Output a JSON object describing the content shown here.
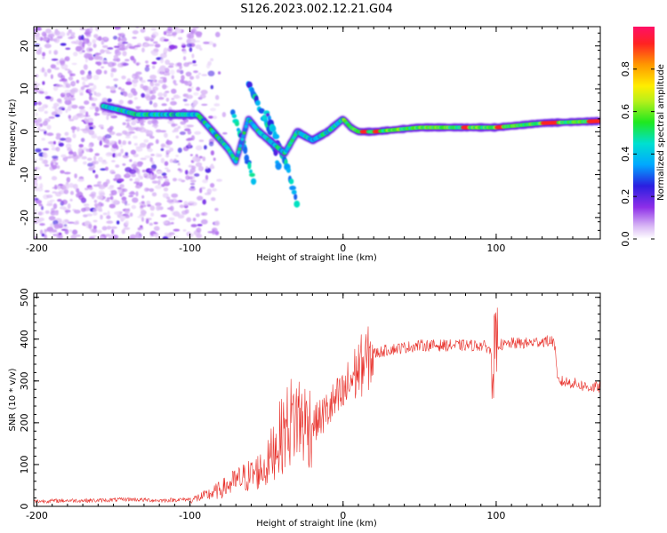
{
  "figure": {
    "title": "S126.2023.002.12.21.G04"
  },
  "chart_data": [
    {
      "type": "heatmap",
      "title": "S126.2023.002.12.21.G04",
      "xlabel": "Height of straight line (km)",
      "ylabel": "Frequency (Hz)",
      "xlim": [
        -202,
        168
      ],
      "ylim": [
        -25,
        24.5
      ],
      "xticks": [
        -200,
        -100,
        0,
        100
      ],
      "xtick_labels": [
        "-200",
        "-100",
        "0",
        "100"
      ],
      "yticks": [
        -20,
        -10,
        0,
        10,
        20
      ],
      "ytick_labels": [
        "-20",
        "-10",
        "0",
        "10",
        "20"
      ],
      "trace": {
        "description": "dominant spectral line (frequency in Hz vs height in km)",
        "x": [
          -157,
          -145,
          -135,
          -120,
          -105,
          -95,
          -85,
          -75,
          -70,
          -62,
          -55,
          -45,
          -38,
          -30,
          -20,
          -10,
          0,
          5,
          10,
          20,
          50,
          80,
          95,
          100,
          130,
          168
        ],
        "y": [
          6,
          5,
          4,
          4,
          4,
          4,
          0,
          -4,
          -7,
          3,
          0,
          -3,
          -5,
          0,
          -2,
          0,
          3,
          1,
          0,
          0,
          1,
          1,
          1,
          1,
          2,
          2.5
        ]
      },
      "secondary_traces": [
        {
          "x": [
            -62,
            -55,
            -48,
            -42
          ],
          "y": [
            11,
            6,
            0,
            -8
          ]
        },
        {
          "x": [
            -50,
            -45,
            -40,
            -35,
            -30
          ],
          "y": [
            5,
            0,
            -5,
            -10,
            -17
          ]
        },
        {
          "x": [
            -72,
            -65,
            -58
          ],
          "y": [
            4,
            -3,
            -12
          ]
        }
      ],
      "colorbar": {
        "label": "Normalized spectral amplitude",
        "range": [
          0.0,
          1.0
        ],
        "ticks": [
          0.0,
          0.2,
          0.4,
          0.6,
          0.8
        ],
        "tick_labels": [
          "0.0",
          "0.2",
          "0.4",
          "0.6",
          "0.8"
        ]
      }
    },
    {
      "type": "line",
      "xlabel": "Height of straight line (km)",
      "ylabel": "SNR (10 * v/v)",
      "xlim": [
        -202,
        168
      ],
      "ylim": [
        0,
        510
      ],
      "xticks": [
        -200,
        -100,
        0,
        100
      ],
      "xtick_labels": [
        "-200",
        "-100",
        "0",
        "100"
      ],
      "yticks": [
        0,
        100,
        200,
        300,
        400,
        500
      ],
      "ytick_labels": [
        "0",
        "100",
        "200",
        "300",
        "400",
        "500"
      ],
      "color": "#e8302a",
      "series": [
        {
          "name": "SNR",
          "x": [
            -202,
            -180,
            -160,
            -140,
            -120,
            -100,
            -90,
            -80,
            -70,
            -60,
            -50,
            -45,
            -40,
            -35,
            -30,
            -25,
            -20,
            -15,
            -10,
            -5,
            0,
            5,
            10,
            20,
            30,
            40,
            50,
            60,
            70,
            80,
            90,
            95,
            98,
            100,
            105,
            110,
            120,
            130,
            138,
            140,
            150,
            160,
            168
          ],
          "y": [
            10,
            12,
            12,
            15,
            12,
            15,
            25,
            40,
            60,
            75,
            95,
            140,
            170,
            200,
            215,
            200,
            195,
            210,
            230,
            250,
            265,
            300,
            330,
            365,
            375,
            380,
            385,
            385,
            385,
            385,
            385,
            380,
            350,
            390,
            385,
            390,
            390,
            395,
            395,
            300,
            295,
            285,
            285
          ]
        }
      ]
    }
  ]
}
